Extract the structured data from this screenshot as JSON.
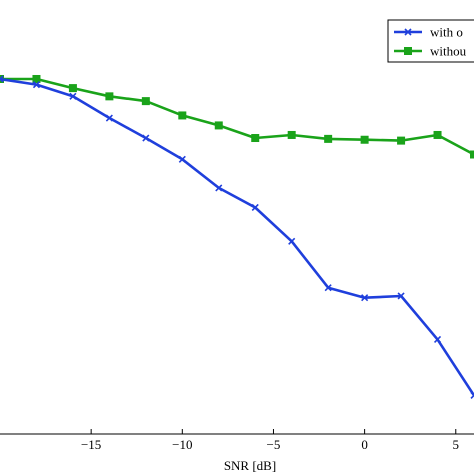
{
  "chart_data": {
    "type": "line",
    "title": "",
    "xlabel": "SNR [dB]",
    "ylabel": "",
    "xlim": [
      -20,
      6
    ],
    "ylim": [
      0,
      1
    ],
    "grid": false,
    "legend_position": "top-right",
    "x_ticks": [
      -15,
      -10,
      -5,
      0,
      5
    ],
    "x_tick_labels": [
      "−15",
      "−10",
      "−5",
      "0",
      "5"
    ],
    "series": [
      {
        "name": "with o",
        "color": "#1f3fdc",
        "marker": "x",
        "x": [
          -20,
          -18,
          -16,
          -14,
          -12,
          -10,
          -8,
          -6,
          -4,
          -2,
          0,
          2,
          4,
          6
        ],
        "y": [
          0.818,
          0.805,
          0.778,
          0.728,
          0.682,
          0.633,
          0.567,
          0.522,
          0.444,
          0.337,
          0.314,
          0.318,
          0.218,
          0.089
        ]
      },
      {
        "name": "withou",
        "color": "#1aa31a",
        "marker": "s",
        "x": [
          -20,
          -18,
          -16,
          -14,
          -12,
          -10,
          -8,
          -6,
          -4,
          -2,
          0,
          2,
          4,
          6
        ],
        "y": [
          0.818,
          0.818,
          0.797,
          0.778,
          0.767,
          0.734,
          0.711,
          0.682,
          0.689,
          0.68,
          0.678,
          0.676,
          0.689,
          0.644
        ]
      }
    ]
  }
}
